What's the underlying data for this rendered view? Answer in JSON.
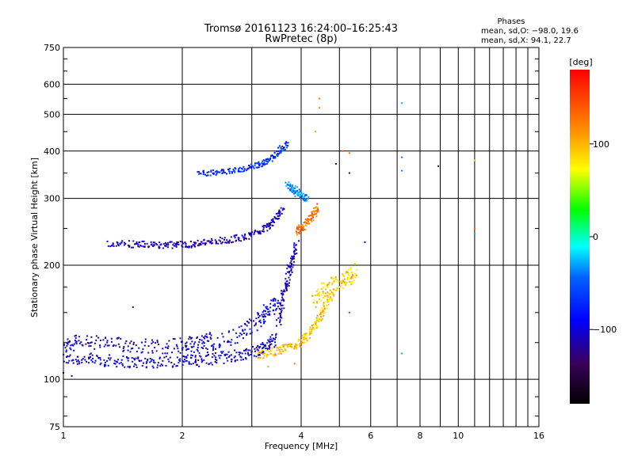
{
  "chart_data": {
    "type": "scatter",
    "title": "Tromsø 20161123 16:24:00–16:25:43",
    "subtitle": "RwPretec (8p)",
    "xlabel": "Frequency [MHz]",
    "ylabel": "Stationary phase Virtual Height [km]",
    "x_scale": "log",
    "y_scale": "log",
    "xlim": [
      1,
      16
    ],
    "ylim": [
      75,
      750
    ],
    "x_ticks": [
      1,
      2,
      4,
      6,
      8,
      10,
      16
    ],
    "x_tick_labels": [
      "1",
      "2",
      "4",
      "6",
      "8",
      "10",
      "16"
    ],
    "x_minor_ticks": [
      3,
      5,
      7,
      9,
      11,
      12,
      13,
      14,
      15
    ],
    "y_ticks": [
      75,
      100,
      200,
      300,
      400,
      500,
      600,
      750
    ],
    "y_tick_labels": [
      "75",
      "100",
      "200",
      "300",
      "400",
      "500",
      "600",
      "750"
    ],
    "grid": true,
    "stats": {
      "heading": "Phases",
      "line1": "mean, sd,O: −98.0, 19.6",
      "line2": "mean, sd,X:  94.1, 22.7"
    },
    "colorbar": {
      "label": "[deg]",
      "range": [
        -180,
        180
      ],
      "ticks": [
        100,
        0,
        -100
      ],
      "tick_labels": [
        "100",
        "0",
        "−100"
      ]
    },
    "traces": [
      {
        "x": [
          1.0,
          1.15,
          1.3,
          1.5,
          1.7,
          2.0,
          2.2,
          2.5,
          2.8,
          3.1,
          3.3,
          3.45
        ],
        "y": [
          113,
          113,
          112,
          111,
          111,
          112,
          112,
          114,
          116,
          119,
          123,
          128
        ],
        "phase": -100,
        "spread": 0.045
      },
      {
        "x": [
          1.0,
          1.1,
          1.3,
          1.5,
          1.8,
          2.1,
          2.4
        ],
        "y": [
          122,
          126,
          124,
          123,
          122,
          124,
          128
        ],
        "phase": -105,
        "spread": 0.055
      },
      {
        "x": [
          2.0,
          2.4,
          2.8,
          3.1,
          3.3,
          3.5
        ],
        "y": [
          118,
          124,
          132,
          142,
          152,
          160
        ],
        "phase": -95,
        "spread": 0.06
      },
      {
        "x": [
          3.5,
          3.6,
          3.7,
          3.8,
          3.9
        ],
        "y": [
          140,
          165,
          185,
          205,
          225
        ],
        "phase": -110,
        "spread": 0.05
      },
      {
        "x": [
          3.1,
          3.4,
          3.7,
          4.0,
          4.2,
          4.4,
          4.6,
          4.8
        ],
        "y": [
          116,
          118,
          121,
          125,
          132,
          142,
          155,
          170
        ],
        "phase": 95,
        "spread": 0.03
      },
      {
        "x": [
          4.3,
          4.6,
          5.0,
          5.3,
          5.5
        ],
        "y": [
          160,
          175,
          180,
          185,
          195
        ],
        "phase": 90,
        "spread": 0.06
      },
      {
        "x": [
          3.9,
          4.1,
          4.3,
          4.4
        ],
        "y": [
          245,
          255,
          270,
          285
        ],
        "phase": 125,
        "spread": 0.03
      },
      {
        "x": [
          1.3,
          1.5,
          1.7,
          1.9,
          2.1,
          2.3,
          2.6,
          2.9,
          3.2,
          3.4,
          3.6
        ],
        "y": [
          228,
          227,
          226,
          226,
          227,
          230,
          233,
          238,
          248,
          262,
          280
        ],
        "phase": -110,
        "spread": 0.025
      },
      {
        "x": [
          2.2,
          2.5,
          2.8,
          3.1,
          3.3,
          3.5,
          3.7
        ],
        "y": [
          348,
          352,
          357,
          366,
          378,
          398,
          420
        ],
        "phase": -70,
        "spread": 0.02
      },
      {
        "x": [
          3.7,
          3.85,
          4.0,
          4.15
        ],
        "y": [
          325,
          315,
          305,
          300
        ],
        "phase": -40,
        "spread": 0.03
      }
    ],
    "points": [
      {
        "x": 4.45,
        "y": 550,
        "phase": 130
      },
      {
        "x": 4.45,
        "y": 520,
        "phase": 120
      },
      {
        "x": 4.35,
        "y": 450,
        "phase": 110
      },
      {
        "x": 5.3,
        "y": 395,
        "phase": 130
      },
      {
        "x": 4.9,
        "y": 370,
        "phase": -100
      },
      {
        "x": 5.3,
        "y": 350,
        "phase": -100
      },
      {
        "x": 5.1,
        "y": 400,
        "phase": 140
      },
      {
        "x": 7.2,
        "y": 535,
        "phase": -30
      },
      {
        "x": 7.2,
        "y": 385,
        "phase": -40
      },
      {
        "x": 7.2,
        "y": 355,
        "phase": -40
      },
      {
        "x": 8.9,
        "y": 365,
        "phase": -110
      },
      {
        "x": 11.0,
        "y": 378,
        "phase": 95
      },
      {
        "x": 11.0,
        "y": 250,
        "phase": 140
      },
      {
        "x": 11.0,
        "y": 242,
        "phase": -30
      },
      {
        "x": 7.2,
        "y": 117,
        "phase": -30
      },
      {
        "x": 5.3,
        "y": 150,
        "phase": 160
      },
      {
        "x": 5.8,
        "y": 230,
        "phase": -90
      },
      {
        "x": 3.85,
        "y": 110,
        "phase": 120
      },
      {
        "x": 3.3,
        "y": 108,
        "phase": 110
      },
      {
        "x": 1.0,
        "y": 104,
        "phase": -105
      },
      {
        "x": 1.05,
        "y": 102,
        "phase": -110
      },
      {
        "x": 1.5,
        "y": 155,
        "phase": -90
      }
    ]
  }
}
